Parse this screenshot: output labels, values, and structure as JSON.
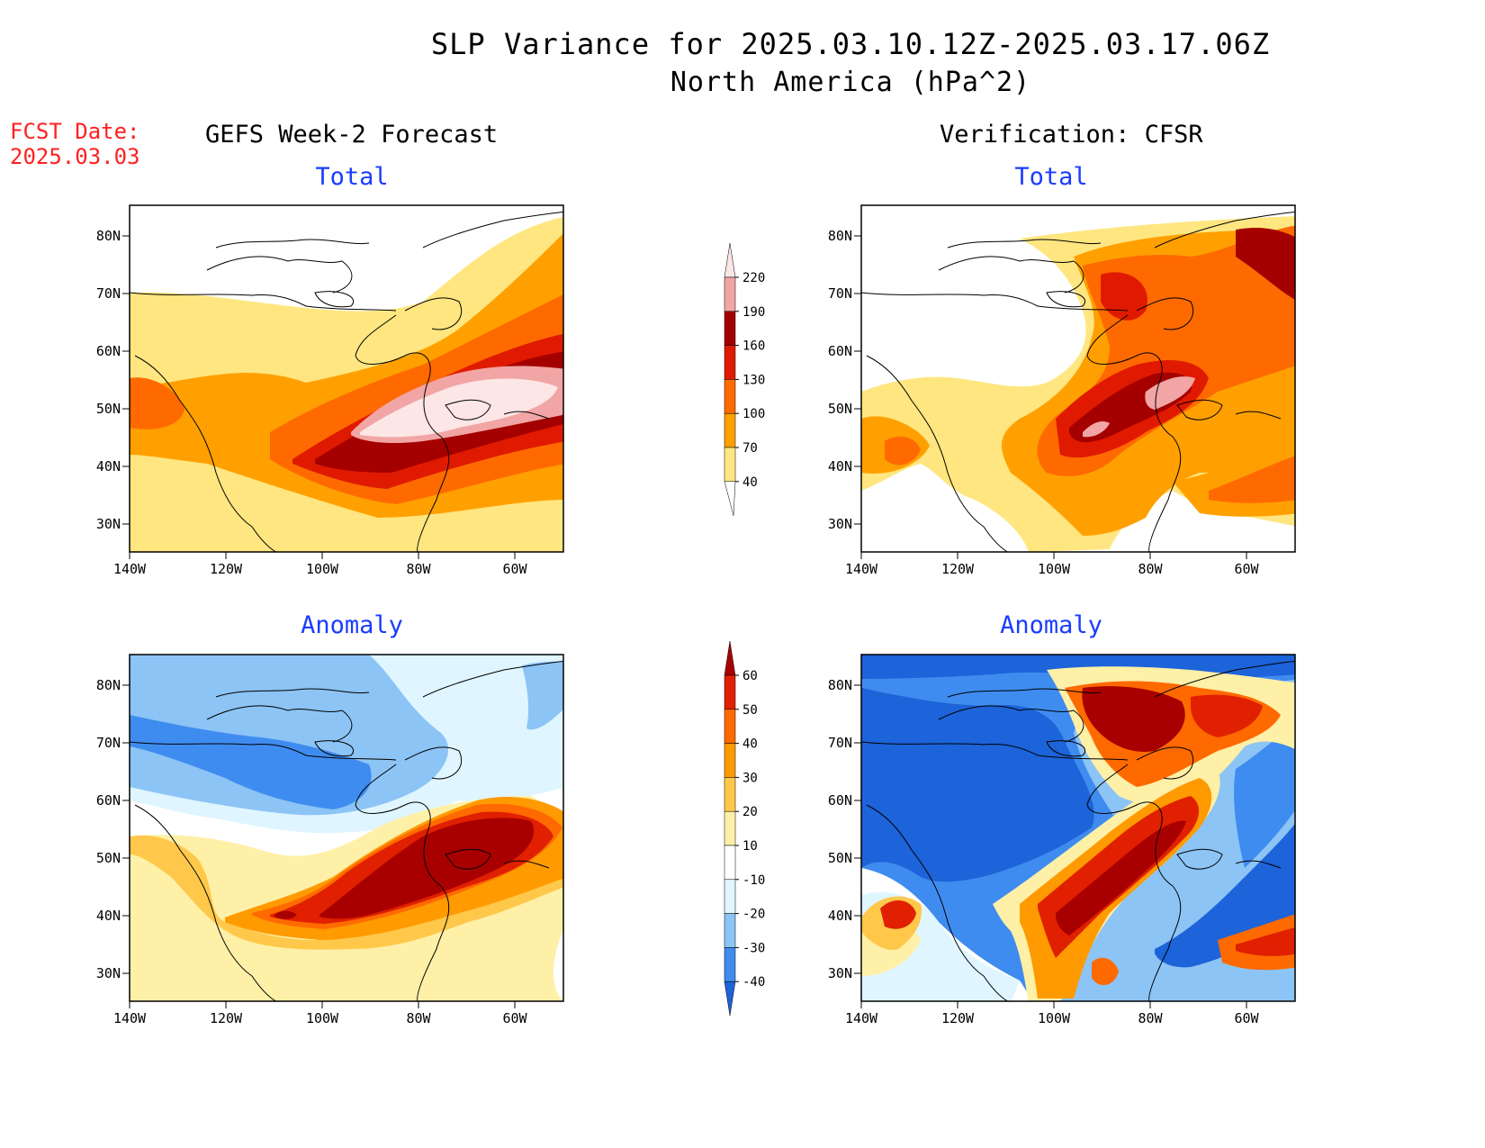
{
  "title": "SLP Variance for 2025.03.10.12Z-2025.03.17.06Z",
  "subtitle": "North America (hPa^2)",
  "fcst_date_label": "FCST Date:",
  "fcst_date": "2025.03.03",
  "columns": {
    "left": "GEFS Week-2 Forecast",
    "right": "Verification: CFSR"
  },
  "rows": {
    "top": "Total",
    "bottom": "Anomaly"
  },
  "axes": {
    "lat_labels": [
      "80N",
      "70N",
      "60N",
      "50N",
      "40N",
      "30N"
    ],
    "lon_labels": [
      "140W",
      "120W",
      "100W",
      "80W",
      "60W"
    ],
    "lat_range": [
      25,
      85
    ],
    "lon_range": [
      -140,
      -50
    ]
  },
  "colorbars": {
    "total": {
      "levels": [
        "40",
        "70",
        "100",
        "130",
        "160",
        "190",
        "220"
      ],
      "colors": [
        "#ffe680",
        "#ffa000",
        "#ff6a00",
        "#e01a00",
        "#a50000",
        "#f2a5a5",
        "#fde6e6"
      ]
    },
    "anomaly": {
      "levels": [
        "-40",
        "-30",
        "-20",
        "-10",
        "10",
        "20",
        "30",
        "40",
        "50",
        "60"
      ],
      "colors": [
        "#1d63d9",
        "#3f8cf0",
        "#8cc4f5",
        "#dff5ff",
        "#ffffff",
        "#fff0a8",
        "#ffc84a",
        "#ff9a00",
        "#ff6a00",
        "#e02000",
        "#a80000"
      ]
    }
  }
}
